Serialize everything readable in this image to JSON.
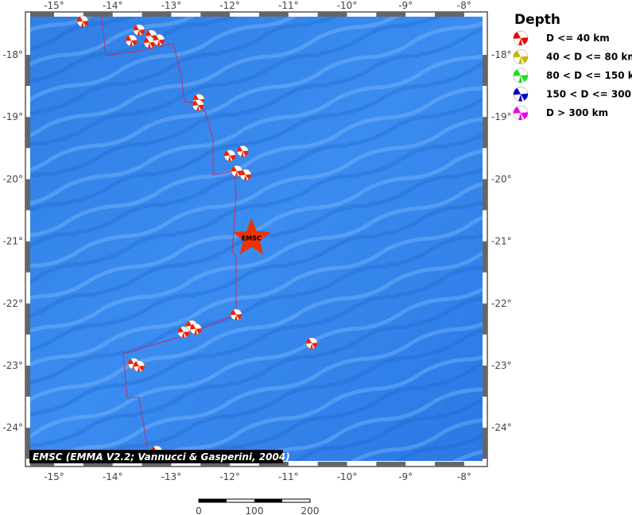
{
  "map": {
    "lon_ticks": [
      "-15°",
      "-14°",
      "-13°",
      "-12°",
      "-11°",
      "-10°",
      "-9°",
      "-8°"
    ],
    "lon_values": [
      -15,
      -14,
      -13,
      -12,
      -11,
      -10,
      -9,
      -8
    ],
    "lat_ticks": [
      "-18°",
      "-19°",
      "-20°",
      "-21°",
      "-22°",
      "-23°",
      "-24°"
    ],
    "lat_values": [
      -18,
      -19,
      -20,
      -21,
      -22,
      -23,
      -24
    ],
    "credit": "EMSC (EMMA V2.2; Vannucci & Gasperini, 2004)",
    "epicenter": {
      "label": "EMSC",
      "lon": -11.63,
      "lat": -20.95,
      "color": "#ee3300"
    },
    "events": [
      [
        -14.51,
        -17.46
      ],
      [
        -13.68,
        -17.77
      ],
      [
        -13.55,
        -17.6
      ],
      [
        -13.34,
        -17.69
      ],
      [
        -13.37,
        -17.8
      ],
      [
        -13.21,
        -17.76
      ],
      [
        -12.53,
        -18.72
      ],
      [
        -12.54,
        -18.81
      ],
      [
        -12.0,
        -19.62
      ],
      [
        -11.78,
        -19.55
      ],
      [
        -11.88,
        -19.87
      ],
      [
        -11.73,
        -19.93
      ],
      [
        -11.89,
        -22.18
      ],
      [
        -12.65,
        -22.36
      ],
      [
        -12.79,
        -22.46
      ],
      [
        -12.58,
        -22.41
      ],
      [
        -13.64,
        -22.97
      ],
      [
        -13.55,
        -23.01
      ],
      [
        -10.6,
        -22.64
      ],
      [
        -13.25,
        -24.38
      ]
    ],
    "event_color": "#ee2200"
  },
  "legend": {
    "title": "Depth",
    "items": [
      {
        "label": "D <= 40 km",
        "color": "#ee0000"
      },
      {
        "label": "40 < D <= 80 km",
        "color": "#c8b400"
      },
      {
        "label": "80 < D <= 150 km",
        "color": "#22dd22"
      },
      {
        "label": "150 < D <= 300 km",
        "color": "#0000cc"
      },
      {
        "label": "D > 300 km",
        "color": "#ee00ee"
      }
    ]
  },
  "scale_bar": {
    "labels": [
      "0",
      "100",
      "200"
    ]
  }
}
